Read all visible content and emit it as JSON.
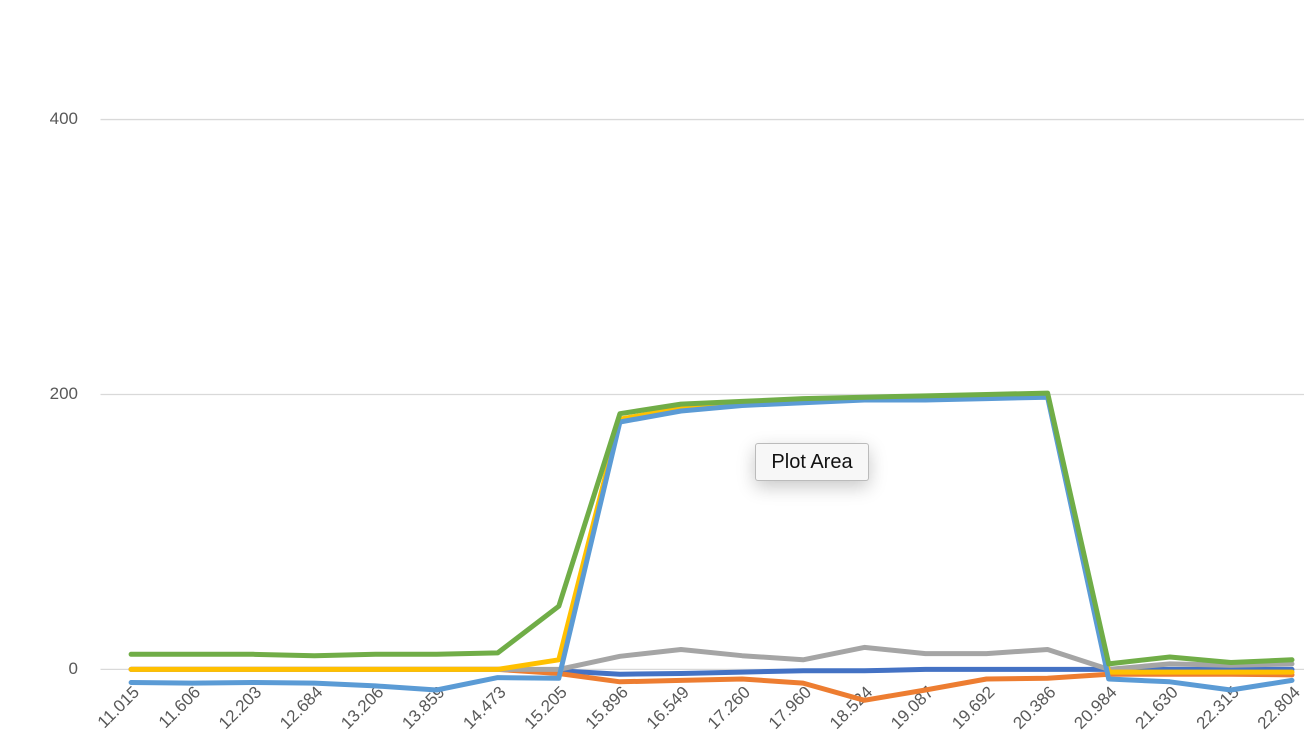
{
  "chart_data": {
    "type": "line",
    "categories": [
      "11.015",
      "11.606",
      "12.203",
      "12.684",
      "13.206",
      "13.859",
      "14.473",
      "15.205",
      "15.896",
      "16.549",
      "17.260",
      "17.960",
      "18.524",
      "19.087",
      "19.692",
      "20.386",
      "20.984",
      "21.630",
      "22.315",
      "22.804"
    ],
    "series": [
      {
        "color": "#4472c4",
        "values": [
          0,
          0,
          0,
          0,
          0,
          0,
          0,
          -1,
          -3.5,
          -3,
          -2,
          -1,
          -1,
          0,
          0,
          0,
          0,
          0,
          0,
          0
        ]
      },
      {
        "color": "#ed7d31",
        "values": [
          0,
          0,
          0,
          0,
          0,
          0,
          0,
          -3,
          -9,
          -8,
          -7,
          -10,
          -22.5,
          -15,
          -7,
          -6.5,
          -3.5,
          -3.5,
          -3.5,
          -4
        ]
      },
      {
        "color": "#a5a5a5",
        "values": [
          0,
          0,
          0,
          0,
          0,
          0,
          0,
          0,
          9.5,
          14.5,
          10,
          7,
          16,
          11.5,
          11.5,
          14.5,
          0,
          4,
          3,
          4
        ]
      },
      {
        "color": "#ffc000",
        "values": [
          0,
          0,
          0,
          0,
          0,
          0,
          0,
          7,
          182,
          190,
          194,
          196,
          197,
          198,
          198,
          199,
          -2,
          -2,
          -2,
          -2
        ]
      },
      {
        "color": "#5b9bd5",
        "values": [
          -9.5,
          -10,
          -9.5,
          -10,
          -12,
          -15,
          -6,
          -6.5,
          180,
          188,
          192,
          194,
          196,
          196,
          197,
          198,
          -7,
          -9,
          -15,
          -8
        ]
      },
      {
        "color": "#70ad47",
        "values": [
          11,
          11,
          11,
          10,
          11,
          11,
          12,
          46,
          186,
          193,
          195,
          197,
          198,
          199,
          200,
          201,
          4,
          9,
          5,
          7
        ]
      }
    ],
    "ylim": [
      -47,
      487
    ],
    "yticks": [
      0,
      200,
      400
    ],
    "grid": true,
    "tooltip": "Plot Area"
  }
}
